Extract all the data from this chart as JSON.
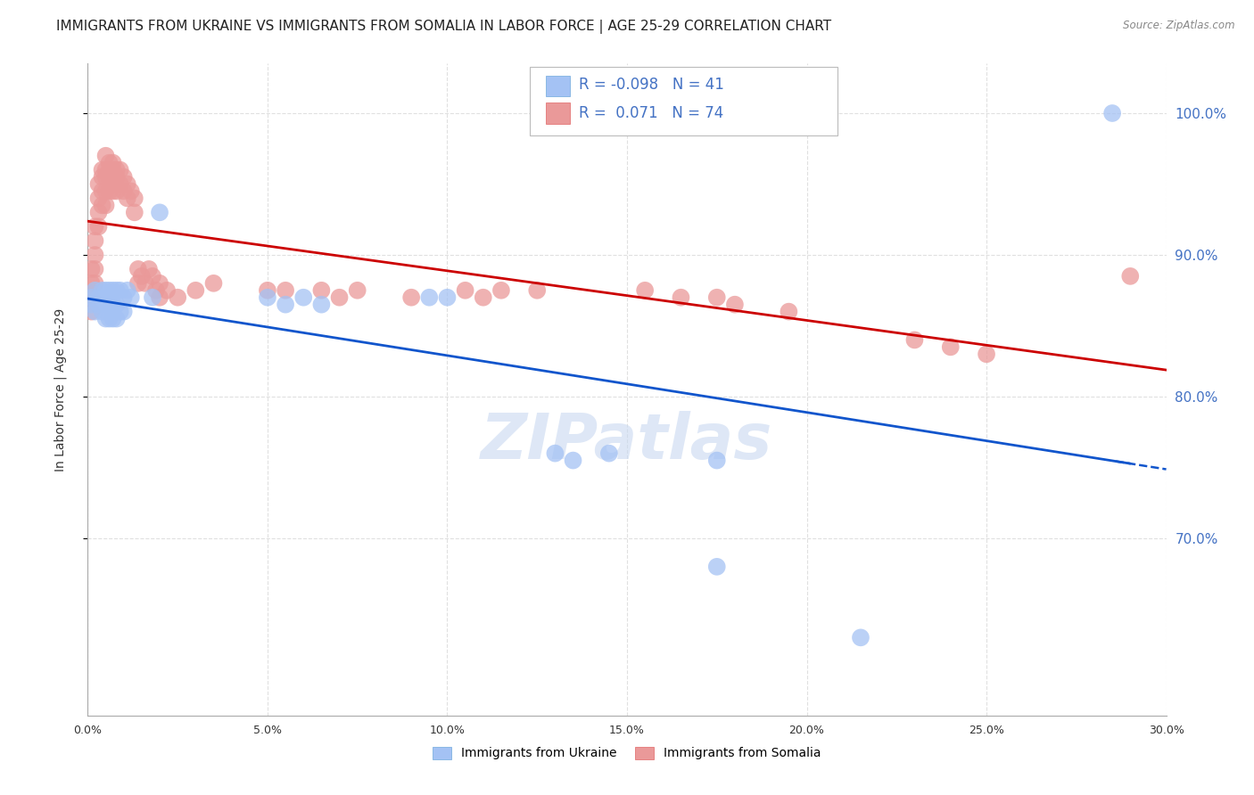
{
  "title": "IMMIGRANTS FROM UKRAINE VS IMMIGRANTS FROM SOMALIA IN LABOR FORCE | AGE 25-29 CORRELATION CHART",
  "source": "Source: ZipAtlas.com",
  "ylabel": "In Labor Force | Age 25-29",
  "xlim": [
    0.0,
    0.3
  ],
  "ylim": [
    0.575,
    1.035
  ],
  "xtick_labels": [
    "0.0%",
    "5.0%",
    "10.0%",
    "15.0%",
    "20.0%",
    "25.0%",
    "30.0%"
  ],
  "xtick_vals": [
    0.0,
    0.05,
    0.1,
    0.15,
    0.2,
    0.25,
    0.3
  ],
  "ytick_vals": [
    0.7,
    0.8,
    0.9,
    1.0
  ],
  "ytick_labels": [
    "70.0%",
    "80.0%",
    "90.0%",
    "100.0%"
  ],
  "ukraine_color": "#a4c2f4",
  "ukraine_edge_color": "#6fa8dc",
  "somalia_color": "#ea9999",
  "somalia_edge_color": "#e06666",
  "ukraine_R": -0.098,
  "ukraine_N": 41,
  "somalia_R": 0.071,
  "somalia_N": 74,
  "ukraine_label": "Immigrants from Ukraine",
  "somalia_label": "Immigrants from Somalia",
  "ukraine_line_color": "#1155cc",
  "somalia_line_color": "#cc0000",
  "ukraine_scatter_x": [
    0.001,
    0.001,
    0.002,
    0.002,
    0.003,
    0.003,
    0.004,
    0.004,
    0.005,
    0.005,
    0.005,
    0.006,
    0.006,
    0.006,
    0.007,
    0.007,
    0.007,
    0.008,
    0.008,
    0.008,
    0.009,
    0.009,
    0.01,
    0.01,
    0.011,
    0.012,
    0.018,
    0.02,
    0.05,
    0.055,
    0.06,
    0.065,
    0.095,
    0.1,
    0.13,
    0.135,
    0.145,
    0.175,
    0.175,
    0.215,
    0.285
  ],
  "ukraine_scatter_y": [
    0.87,
    0.865,
    0.875,
    0.86,
    0.87,
    0.865,
    0.875,
    0.86,
    0.875,
    0.865,
    0.855,
    0.875,
    0.865,
    0.855,
    0.875,
    0.865,
    0.855,
    0.875,
    0.865,
    0.855,
    0.875,
    0.86,
    0.87,
    0.86,
    0.875,
    0.87,
    0.87,
    0.93,
    0.87,
    0.865,
    0.87,
    0.865,
    0.87,
    0.87,
    0.76,
    0.755,
    0.76,
    0.755,
    0.68,
    0.63,
    1.0
  ],
  "somalia_scatter_x": [
    0.001,
    0.001,
    0.001,
    0.001,
    0.002,
    0.002,
    0.002,
    0.002,
    0.002,
    0.003,
    0.003,
    0.003,
    0.003,
    0.004,
    0.004,
    0.004,
    0.004,
    0.005,
    0.005,
    0.005,
    0.005,
    0.005,
    0.006,
    0.006,
    0.006,
    0.006,
    0.007,
    0.007,
    0.007,
    0.007,
    0.008,
    0.008,
    0.008,
    0.009,
    0.009,
    0.01,
    0.01,
    0.011,
    0.011,
    0.012,
    0.013,
    0.013,
    0.014,
    0.014,
    0.015,
    0.016,
    0.017,
    0.018,
    0.019,
    0.02,
    0.02,
    0.022,
    0.025,
    0.03,
    0.035,
    0.05,
    0.055,
    0.065,
    0.07,
    0.075,
    0.09,
    0.105,
    0.11,
    0.115,
    0.125,
    0.155,
    0.165,
    0.175,
    0.18,
    0.195,
    0.23,
    0.24,
    0.25,
    0.29
  ],
  "somalia_scatter_y": [
    0.89,
    0.88,
    0.87,
    0.86,
    0.92,
    0.91,
    0.9,
    0.89,
    0.88,
    0.95,
    0.94,
    0.93,
    0.92,
    0.96,
    0.955,
    0.945,
    0.935,
    0.97,
    0.96,
    0.955,
    0.945,
    0.935,
    0.965,
    0.96,
    0.955,
    0.945,
    0.965,
    0.96,
    0.955,
    0.945,
    0.96,
    0.955,
    0.945,
    0.96,
    0.95,
    0.955,
    0.945,
    0.95,
    0.94,
    0.945,
    0.94,
    0.93,
    0.89,
    0.88,
    0.885,
    0.88,
    0.89,
    0.885,
    0.875,
    0.88,
    0.87,
    0.875,
    0.87,
    0.875,
    0.88,
    0.875,
    0.875,
    0.875,
    0.87,
    0.875,
    0.87,
    0.875,
    0.87,
    0.875,
    0.875,
    0.875,
    0.87,
    0.87,
    0.865,
    0.86,
    0.84,
    0.835,
    0.83,
    0.885
  ],
  "watermark": "ZIPatlas",
  "background_color": "#ffffff",
  "grid_color": "#dddddd",
  "title_fontsize": 11,
  "axis_label_fontsize": 10,
  "tick_fontsize": 9,
  "legend_fontsize": 12,
  "right_ytick_color": "#4472c4"
}
